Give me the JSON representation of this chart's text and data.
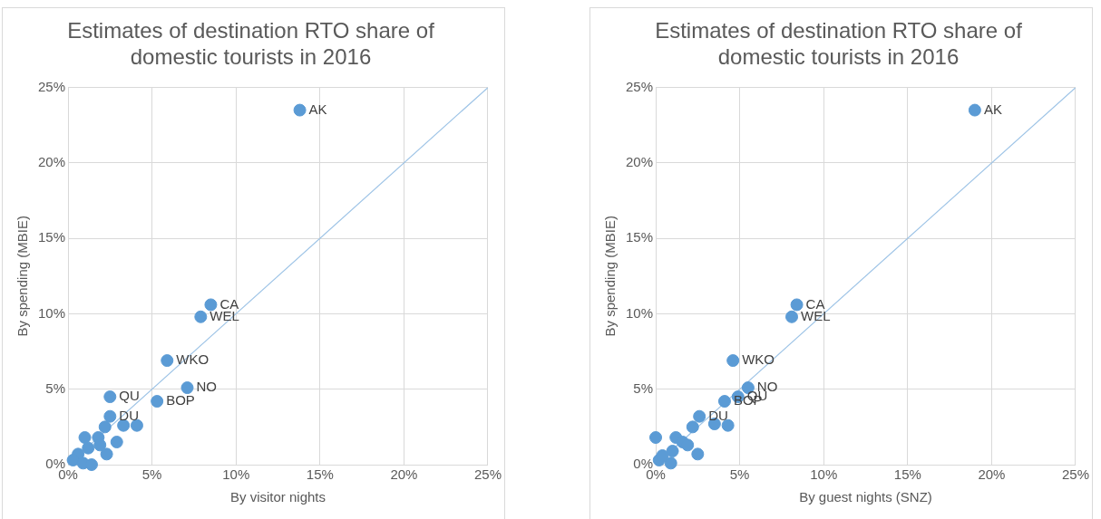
{
  "chart_data": [
    {
      "type": "scatter",
      "title": "Estimates of destination RTO share of domestic tourists in 2016",
      "xlabel": "By visitor nights",
      "ylabel": "By spending (MBIE)",
      "xlim": [
        0,
        25
      ],
      "ylim": [
        0,
        25
      ],
      "xticks": [
        {
          "value": 0,
          "label": "0%"
        },
        {
          "value": 5,
          "label": "5%"
        },
        {
          "value": 10,
          "label": "10%"
        },
        {
          "value": 15,
          "label": "15%"
        },
        {
          "value": 20,
          "label": "20%"
        },
        {
          "value": 25,
          "label": "25%"
        }
      ],
      "yticks": [
        {
          "value": 0,
          "label": "0%"
        },
        {
          "value": 5,
          "label": "5%"
        },
        {
          "value": 10,
          "label": "10%"
        },
        {
          "value": 15,
          "label": "15%"
        },
        {
          "value": 20,
          "label": "20%"
        },
        {
          "value": 25,
          "label": "25%"
        }
      ],
      "grid": true,
      "series": [
        {
          "color": "#5b9bd5",
          "marker": "circle",
          "x": [
            13.8,
            8.5,
            7.9,
            5.9,
            7.1,
            5.3,
            2.5,
            2.5,
            2.2,
            3.3,
            4.1,
            1.0,
            1.8,
            1.2,
            0.6,
            0.3,
            0.9,
            1.4,
            1.9,
            2.9,
            2.3
          ],
          "values": [
            23.5,
            10.6,
            9.8,
            6.9,
            5.1,
            4.2,
            4.5,
            3.2,
            2.5,
            2.6,
            2.6,
            1.8,
            1.8,
            1.1,
            0.7,
            0.3,
            0.1,
            0.0,
            1.3,
            1.5,
            0.7
          ]
        },
        {
          "type": "line",
          "color": "#9dc3e6",
          "marker": "none",
          "x": [
            0,
            25
          ],
          "values": [
            0,
            25
          ]
        }
      ],
      "annotations": [
        {
          "text": "AK",
          "x": 13.8,
          "y": 23.5
        },
        {
          "text": "CA",
          "x": 8.5,
          "y": 10.6
        },
        {
          "text": "WEL",
          "x": 7.9,
          "y": 9.8
        },
        {
          "text": "WKO",
          "x": 5.9,
          "y": 6.9
        },
        {
          "text": "NO",
          "x": 7.1,
          "y": 5.1
        },
        {
          "text": "BOP",
          "x": 5.3,
          "y": 4.2
        },
        {
          "text": "QU",
          "x": 2.5,
          "y": 4.5
        },
        {
          "text": "DU",
          "x": 2.5,
          "y": 3.2
        }
      ]
    },
    {
      "type": "scatter",
      "title": "Estimates of destination RTO share of domestic tourists in 2016",
      "xlabel": "By guest nights (SNZ)",
      "ylabel": "By spending (MBIE)",
      "xlim": [
        0,
        25
      ],
      "ylim": [
        0,
        25
      ],
      "xticks": [
        {
          "value": 0,
          "label": "0%"
        },
        {
          "value": 5,
          "label": "5%"
        },
        {
          "value": 10,
          "label": "10%"
        },
        {
          "value": 15,
          "label": "15%"
        },
        {
          "value": 20,
          "label": "20%"
        },
        {
          "value": 25,
          "label": "25%"
        }
      ],
      "yticks": [
        {
          "value": 0,
          "label": "0%"
        },
        {
          "value": 5,
          "label": "5%"
        },
        {
          "value": 10,
          "label": "10%"
        },
        {
          "value": 15,
          "label": "15%"
        },
        {
          "value": 20,
          "label": "20%"
        },
        {
          "value": 25,
          "label": "25%"
        }
      ],
      "grid": true,
      "series": [
        {
          "color": "#5b9bd5",
          "marker": "circle",
          "x": [
            19.0,
            8.4,
            8.1,
            4.6,
            5.5,
            4.9,
            4.1,
            2.6,
            2.2,
            3.5,
            4.3,
            0.0,
            1.2,
            1.6,
            1.0,
            0.2,
            0.9,
            0.4,
            1.9,
            2.5
          ],
          "values": [
            23.5,
            10.6,
            9.8,
            6.9,
            5.1,
            4.5,
            4.2,
            3.2,
            2.5,
            2.7,
            2.6,
            1.8,
            1.8,
            1.5,
            0.9,
            0.3,
            0.1,
            0.6,
            1.3,
            0.7
          ]
        },
        {
          "type": "line",
          "color": "#9dc3e6",
          "marker": "none",
          "x": [
            0,
            25
          ],
          "values": [
            0,
            25
          ]
        }
      ],
      "annotations": [
        {
          "text": "AK",
          "x": 19.0,
          "y": 23.5
        },
        {
          "text": "CA",
          "x": 8.4,
          "y": 10.6
        },
        {
          "text": "WEL",
          "x": 8.1,
          "y": 9.8
        },
        {
          "text": "WKO",
          "x": 4.6,
          "y": 6.9
        },
        {
          "text": "NO",
          "x": 5.5,
          "y": 5.1
        },
        {
          "text": "QU",
          "x": 4.9,
          "y": 4.5
        },
        {
          "text": "BOP",
          "x": 4.1,
          "y": 4.2
        },
        {
          "text": "DU",
          "x": 2.6,
          "y": 3.2
        }
      ]
    }
  ]
}
